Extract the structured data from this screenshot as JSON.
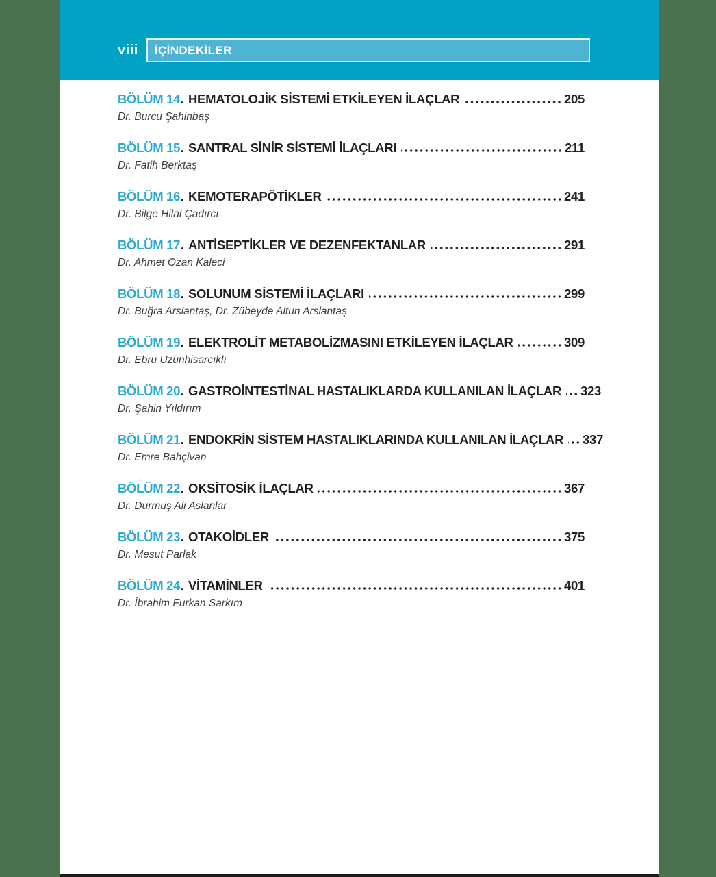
{
  "page": {
    "folio": "viii",
    "header_title": "İÇİNDEKİLER"
  },
  "colors": {
    "band_teal": "#02a2c5",
    "header_box_fill": "#4fb3d4",
    "margin_green": "#4a7250",
    "chapter_cyan": "#2aa9d2",
    "ink": "#231f20"
  },
  "toc": {
    "label_separator": ".",
    "entries": [
      {
        "chapter": "BÖLÜM 14",
        "title": "HEMATOLOJİK SİSTEMİ ETKİLEYEN İLAÇLAR",
        "page": "205",
        "authors": "Dr. Burcu Şahinbaş"
      },
      {
        "chapter": "BÖLÜM 15",
        "title": "SANTRAL SİNİR SİSTEMİ İLAÇLARI",
        "page": "211",
        "authors": "Dr. Fatih Berktaş"
      },
      {
        "chapter": "BÖLÜM 16",
        "title": "KEMOTERAPÖTİKLER",
        "page": "241",
        "authors": "Dr. Bilge Hilal Çadırcı"
      },
      {
        "chapter": "BÖLÜM 17",
        "title": "ANTİSEPTİKLER VE DEZENFEKTANLAR",
        "page": "291",
        "authors": "Dr. Ahmet Ozan Kaleci"
      },
      {
        "chapter": "BÖLÜM 18",
        "title": "SOLUNUM SİSTEMİ İLAÇLARI",
        "page": "299",
        "authors": "Dr. Buğra Arslantaş, Dr. Zübeyde Altun Arslantaş"
      },
      {
        "chapter": "BÖLÜM 19",
        "title": "ELEKTROLİT METABOLİZMASINI ETKİLEYEN İLAÇLAR",
        "page": "309",
        "authors": "Dr. Ebru Uzunhisarcıklı"
      },
      {
        "chapter": "BÖLÜM 20",
        "title": "GASTROİNTESTİNAL HASTALIKLARDA KULLANILAN İLAÇLAR",
        "page": "323",
        "authors": "Dr. Şahin Yıldırım"
      },
      {
        "chapter": "BÖLÜM 21",
        "title": "ENDOKRİN SİSTEM HASTALIKLARINDA KULLANILAN İLAÇLAR",
        "page": "337",
        "authors": "Dr. Emre Bahçivan"
      },
      {
        "chapter": "BÖLÜM 22",
        "title": "OKSİTOSİK İLAÇLAR",
        "page": "367",
        "authors": "Dr. Durmuş Ali Aslanlar"
      },
      {
        "chapter": "BÖLÜM 23",
        "title": "OTAKOİDLER",
        "page": "375",
        "authors": "Dr. Mesut Parlak"
      },
      {
        "chapter": "BÖLÜM 24",
        "title": "VİTAMİNLER",
        "page": "401",
        "authors": "Dr. İbrahim Furkan Sarkım"
      }
    ]
  }
}
